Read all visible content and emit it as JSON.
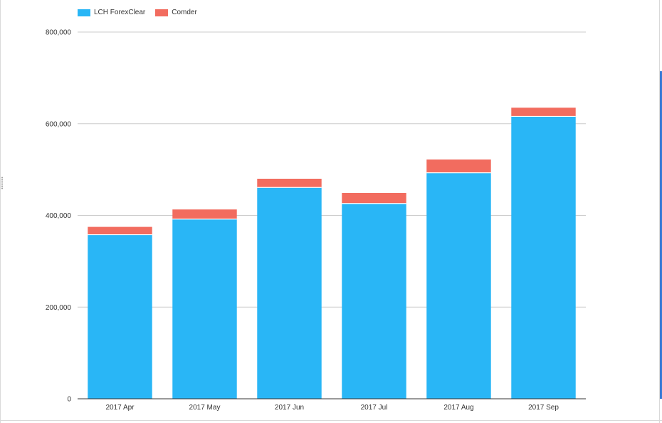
{
  "chart_data": {
    "type": "bar",
    "stacked": true,
    "categories": [
      "2017 Apr",
      "2017 May",
      "2017 Jun",
      "2017 Jul",
      "2017 Aug",
      "2017 Sep"
    ],
    "series": [
      {
        "name": "LCH ForexClear",
        "color": "#29b6f6",
        "values": [
          358000,
          392000,
          461000,
          426000,
          493000,
          616000
        ]
      },
      {
        "name": "Comder",
        "color": "#f26c5f",
        "values": [
          17000,
          21000,
          19000,
          23000,
          29000,
          19000
        ]
      }
    ],
    "y_ticks": [
      {
        "value": 0,
        "label": "0"
      },
      {
        "value": 200000,
        "label": "200,000"
      },
      {
        "value": 400000,
        "label": "400,000"
      },
      {
        "value": 600000,
        "label": "600,000"
      },
      {
        "value": 800000,
        "label": "800,000"
      }
    ],
    "ylim": [
      0,
      800000
    ],
    "title": "",
    "xlabel": "",
    "ylabel": "",
    "grid": true,
    "legend_position": "top-left"
  }
}
